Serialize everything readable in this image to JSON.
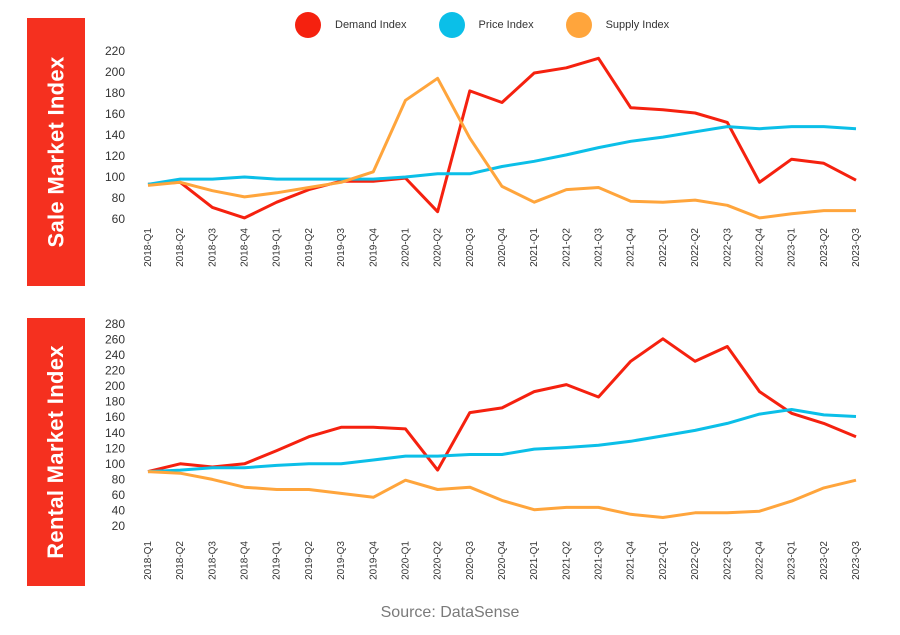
{
  "legend": [
    {
      "name": "Demand Index",
      "color": "#f5210f"
    },
    {
      "name": "Price Index",
      "color": "#0bbfe8"
    },
    {
      "name": "Supply Index",
      "color": "#ffa53c"
    }
  ],
  "source": "Source: DataSense",
  "chart_data": [
    {
      "type": "line",
      "title": "Sale Market Index",
      "ylim": [
        60,
        220
      ],
      "yticks": [
        60,
        80,
        100,
        120,
        140,
        160,
        180,
        200,
        220
      ],
      "grid": false,
      "legend_position": "top",
      "categories": [
        "2018-Q1",
        "2018-Q2",
        "2018-Q3",
        "2018-Q4",
        "2019-Q1",
        "2019-Q2",
        "2019-Q3",
        "2019-Q4",
        "2020-Q1",
        "2020-Q2",
        "2020-Q3",
        "2020-Q4",
        "2021-Q1",
        "2021-Q2",
        "2021-Q3",
        "2021-Q4",
        "2022-Q1",
        "2022-Q2",
        "2022-Q3",
        "2022-Q4",
        "2023-Q1",
        "2023-Q2",
        "2023-Q3"
      ],
      "series": [
        {
          "name": "Demand Index",
          "color": "#f5210f",
          "values": [
            93,
            95,
            71,
            61,
            76,
            88,
            96,
            96,
            99,
            67,
            182,
            171,
            199,
            204,
            213,
            166,
            164,
            161,
            152,
            95,
            117,
            113,
            97
          ]
        },
        {
          "name": "Price Index",
          "color": "#0bbfe8",
          "values": [
            93,
            98,
            98,
            100,
            98,
            98,
            98,
            98,
            100,
            103,
            103,
            110,
            115,
            121,
            128,
            134,
            138,
            143,
            148,
            146,
            148,
            148,
            146
          ]
        },
        {
          "name": "Supply Index",
          "color": "#ffa53c",
          "values": [
            92,
            95,
            87,
            81,
            85,
            90,
            95,
            105,
            173,
            194,
            137,
            91,
            76,
            88,
            90,
            77,
            76,
            78,
            73,
            61,
            65,
            68,
            68
          ]
        }
      ]
    },
    {
      "type": "line",
      "title": "Rental Market Index",
      "ylim": [
        20,
        280
      ],
      "yticks": [
        20,
        40,
        60,
        80,
        100,
        120,
        140,
        160,
        180,
        200,
        220,
        240,
        260,
        280
      ],
      "grid": false,
      "legend_position": "top",
      "categories": [
        "2018-Q1",
        "2018-Q2",
        "2018-Q3",
        "2018-Q4",
        "2019-Q1",
        "2019-Q2",
        "2019-Q3",
        "2019-Q4",
        "2020-Q1",
        "2020-Q2",
        "2020-Q3",
        "2020-Q4",
        "2021-Q1",
        "2021-Q2",
        "2021-Q3",
        "2021-Q4",
        "2022-Q1",
        "2022-Q2",
        "2022-Q3",
        "2022-Q4",
        "2023-Q1",
        "2023-Q2",
        "2023-Q3"
      ],
      "series": [
        {
          "name": "Demand Index",
          "color": "#f5210f",
          "values": [
            90,
            100,
            96,
            100,
            117,
            135,
            147,
            147,
            145,
            92,
            166,
            172,
            193,
            202,
            186,
            232,
            261,
            232,
            251,
            193,
            165,
            152,
            135
          ]
        },
        {
          "name": "Price Index",
          "color": "#0bbfe8",
          "values": [
            90,
            92,
            95,
            95,
            98,
            100,
            100,
            105,
            110,
            110,
            112,
            112,
            119,
            121,
            124,
            129,
            136,
            143,
            152,
            164,
            170,
            163,
            161
          ]
        },
        {
          "name": "Supply Index",
          "color": "#ffa53c",
          "values": [
            90,
            88,
            80,
            70,
            67,
            67,
            62,
            57,
            79,
            67,
            70,
            53,
            41,
            44,
            44,
            35,
            31,
            37,
            37,
            39,
            52,
            69,
            79
          ]
        }
      ]
    }
  ]
}
